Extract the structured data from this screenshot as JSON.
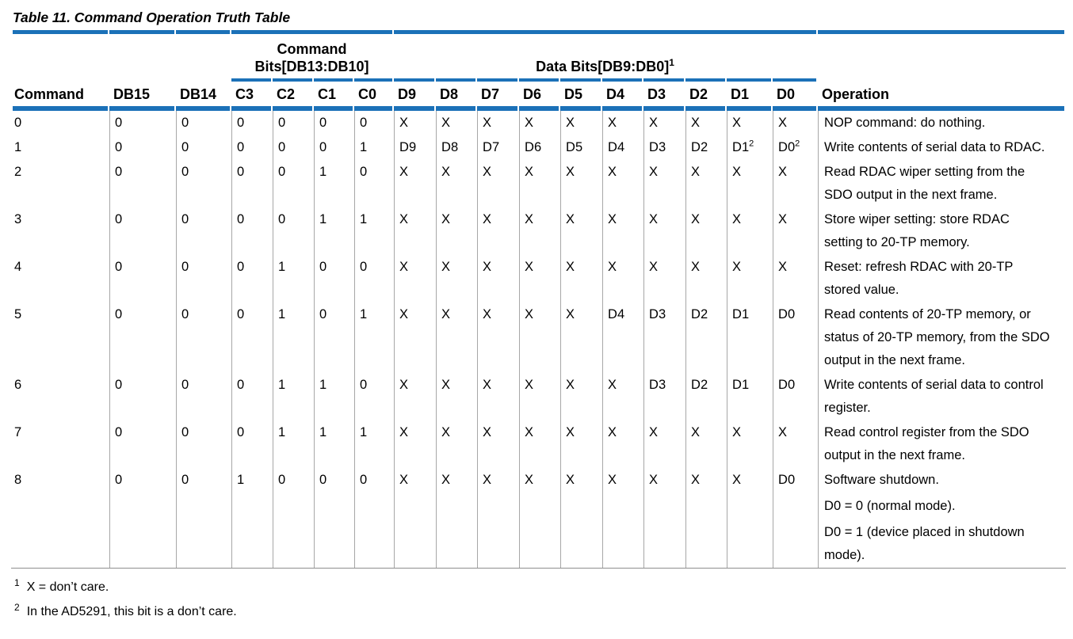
{
  "title": "Table 11. Command Operation Truth Table",
  "colors": {
    "rule_blue": "#1b71b8",
    "grid_gray": "#a7a7a7",
    "bottom_rule_gray": "#8f8f8f",
    "text": "#000000"
  },
  "table": {
    "group_headers": {
      "command_bits": {
        "line1": "Command",
        "line2": "Bits[DB13:DB10]"
      },
      "data_bits": {
        "label": "Data Bits[DB9:DB0]",
        "footnote_ref": "1"
      }
    },
    "columns": [
      "Command",
      "DB15",
      "DB14",
      "C3",
      "C2",
      "C1",
      "C0",
      "D9",
      "D8",
      "D7",
      "D6",
      "D5",
      "D4",
      "D3",
      "D2",
      "D1",
      "D0",
      "Operation"
    ],
    "rows": [
      {
        "command": "0",
        "bits": [
          "0",
          "0",
          "0",
          "0",
          "0",
          "0",
          "X",
          "X",
          "X",
          "X",
          "X",
          "X",
          "X",
          "X",
          "X",
          "X"
        ],
        "operation": [
          [
            "NOP command: do nothing."
          ]
        ]
      },
      {
        "command": "1",
        "bits": [
          "0",
          "0",
          "0",
          "0",
          "0",
          "1",
          "D9",
          "D8",
          "D7",
          "D6",
          "D5",
          "D4",
          "D3",
          "D2",
          "D1^2",
          "D0^2"
        ],
        "operation": [
          [
            "Write contents of serial data to RDAC."
          ]
        ]
      },
      {
        "command": "2",
        "bits": [
          "0",
          "0",
          "0",
          "0",
          "1",
          "0",
          "X",
          "X",
          "X",
          "X",
          "X",
          "X",
          "X",
          "X",
          "X",
          "X"
        ],
        "operation": [
          [
            "Read RDAC wiper setting from the",
            "SDO output in the next frame."
          ]
        ]
      },
      {
        "command": "3",
        "bits": [
          "0",
          "0",
          "0",
          "0",
          "1",
          "1",
          "X",
          "X",
          "X",
          "X",
          "X",
          "X",
          "X",
          "X",
          "X",
          "X"
        ],
        "operation": [
          [
            "Store wiper setting: store RDAC",
            "setting to 20-TP memory."
          ]
        ]
      },
      {
        "command": "4",
        "bits": [
          "0",
          "0",
          "0",
          "1",
          "0",
          "0",
          "X",
          "X",
          "X",
          "X",
          "X",
          "X",
          "X",
          "X",
          "X",
          "X"
        ],
        "operation": [
          [
            "Reset: refresh RDAC with 20-TP",
            "stored value."
          ]
        ]
      },
      {
        "command": "5",
        "bits": [
          "0",
          "0",
          "0",
          "1",
          "0",
          "1",
          "X",
          "X",
          "X",
          "X",
          "X",
          "D4",
          "D3",
          "D2",
          "D1",
          "D0"
        ],
        "operation": [
          [
            "Read contents of 20-TP memory, or",
            "status of 20-TP memory, from the SDO",
            "output in the next frame."
          ]
        ]
      },
      {
        "command": "6",
        "bits": [
          "0",
          "0",
          "0",
          "1",
          "1",
          "0",
          "X",
          "X",
          "X",
          "X",
          "X",
          "X",
          "D3",
          "D2",
          "D1",
          "D0"
        ],
        "operation": [
          [
            "Write contents of serial data to control",
            "register."
          ]
        ]
      },
      {
        "command": "7",
        "bits": [
          "0",
          "0",
          "0",
          "1",
          "1",
          "1",
          "X",
          "X",
          "X",
          "X",
          "X",
          "X",
          "X",
          "X",
          "X",
          "X"
        ],
        "operation": [
          [
            "Read control register from the SDO",
            "output in the next frame."
          ]
        ]
      },
      {
        "command": "8",
        "bits": [
          "0",
          "0",
          "1",
          "0",
          "0",
          "0",
          "X",
          "X",
          "X",
          "X",
          "X",
          "X",
          "X",
          "X",
          "X",
          "D0"
        ],
        "operation": [
          [
            "Software shutdown."
          ],
          [
            "D0 = 0 (normal mode)."
          ],
          [
            "D0 = 1 (device placed in shutdown",
            "mode)."
          ]
        ]
      }
    ]
  },
  "footnotes": [
    {
      "marker": "1",
      "text": "X = don’t care."
    },
    {
      "marker": "2",
      "text": "In the AD5291, this bit is a don’t care."
    }
  ]
}
